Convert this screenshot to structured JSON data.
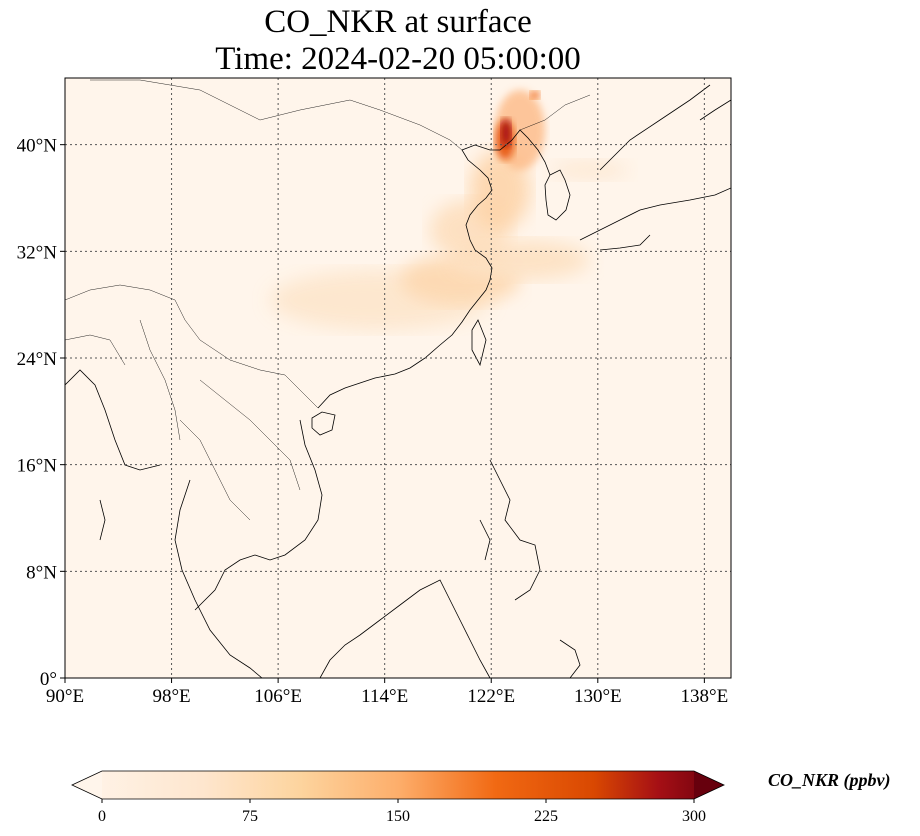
{
  "title": {
    "line1": "CO_NKR at surface",
    "line2": "Time: 2024-02-20 05:00:00"
  },
  "map": {
    "lon_range": [
      90,
      140
    ],
    "lat_range": [
      0,
      45
    ],
    "lon_ticks": [
      90,
      98,
      106,
      114,
      122,
      130,
      138
    ],
    "lat_ticks": [
      0,
      8,
      16,
      24,
      32,
      40
    ],
    "lon_tick_labels": [
      "90°E",
      "98°E",
      "106°E",
      "114°E",
      "122°E",
      "130°E",
      "138°E"
    ],
    "lat_tick_labels": [
      "0°",
      "8°N",
      "16°N",
      "24°N",
      "32°N",
      "40°N"
    ],
    "gridlines": true,
    "background_color": "#fff5eb"
  },
  "colorbar": {
    "label": "CO_NKR (ppbv)",
    "range": [
      0,
      300
    ],
    "ticks": [
      0,
      75,
      150,
      225,
      300
    ],
    "tick_labels": [
      "0",
      "75",
      "150",
      "225",
      "300"
    ],
    "extend": "both",
    "colormap": "Oranges-to-dark-red",
    "colors": [
      "#fff5eb",
      "#fdd49e",
      "#fdae6b",
      "#f16913",
      "#d94801",
      "#a50f15",
      "#67000d"
    ]
  }
}
